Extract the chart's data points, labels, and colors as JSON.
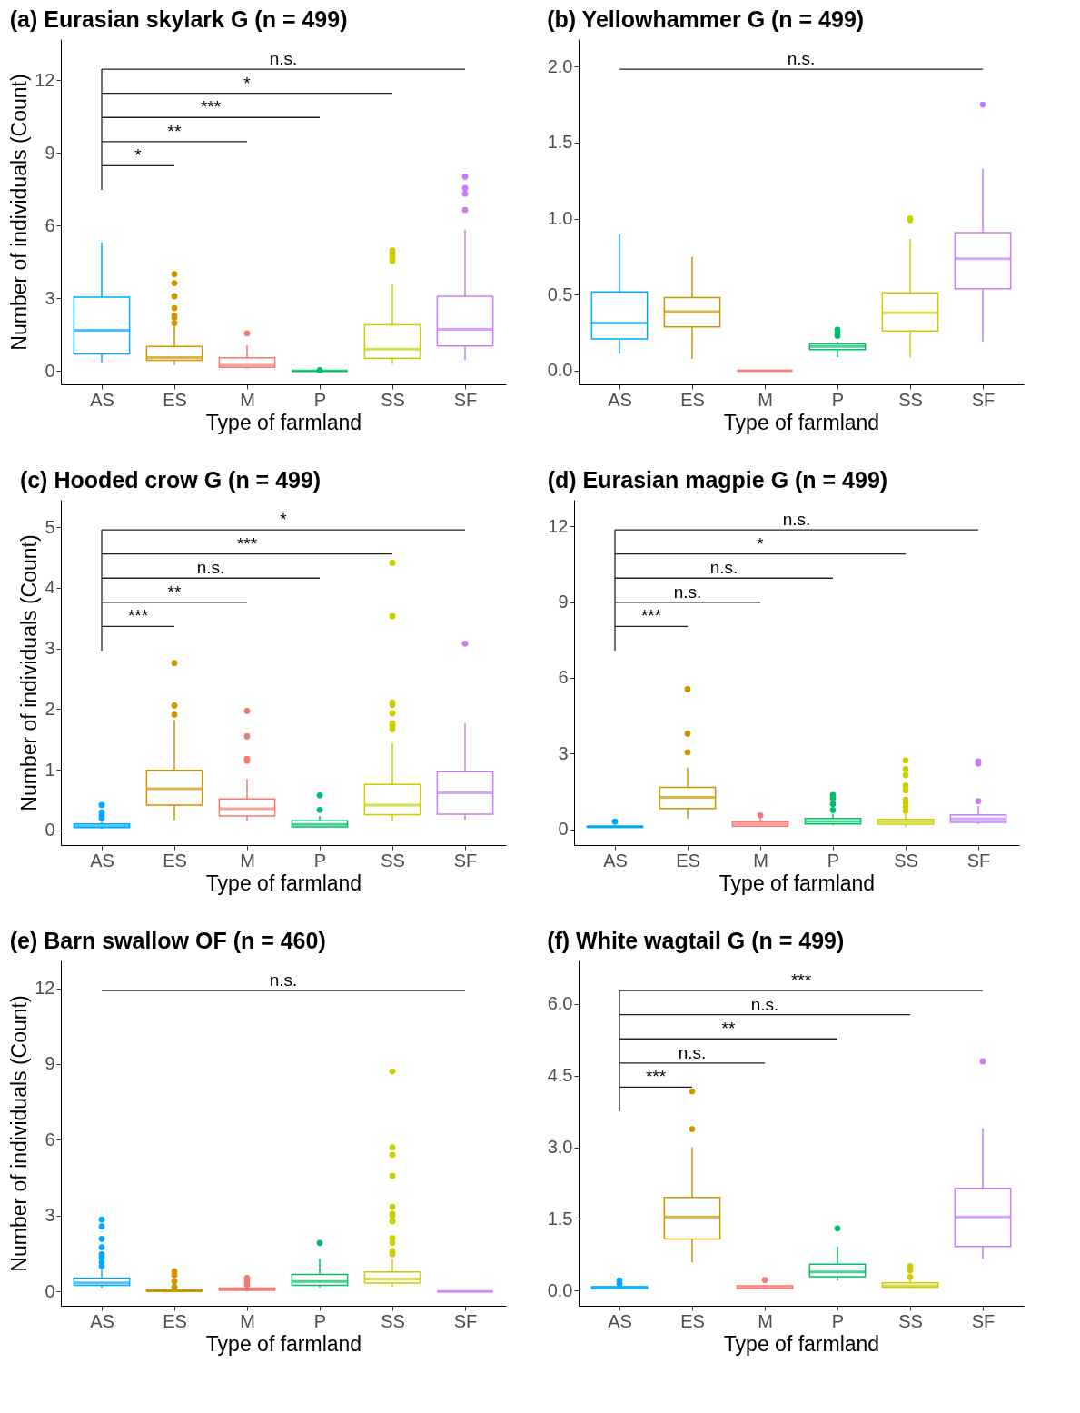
{
  "chart_data": [
    {
      "type": "box",
      "title": "(a) Eurasian skylark G (n = 499)",
      "xlabel": "Type of farmland",
      "ylabel": "Number of individuals (Count)",
      "categories": [
        "AS",
        "ES",
        "M",
        "P",
        "SS",
        "SF"
      ],
      "colors": [
        "#00a9ff",
        "#cd9600",
        "#f8766d",
        "#00be67",
        "#cccc00",
        "#c77cff"
      ],
      "ylim": [
        -0.55,
        13.7
      ],
      "yticks": [
        0,
        3,
        6,
        9,
        12
      ],
      "annotations": [
        "*",
        "**",
        "***",
        "*",
        "n.s."
      ],
      "boxes": [
        {
          "low": 0.34,
          "q1": 0.71,
          "median": 1.68,
          "q3": 3.05,
          "high": 5.3
        },
        {
          "low": 0.25,
          "q1": 0.44,
          "median": 0.56,
          "q3": 1.02,
          "high": 1.9,
          "outliers": [
            1.98,
            2.21,
            2.29,
            2.6,
            3.09,
            3.63,
            4.0
          ]
        },
        {
          "low": 0.1,
          "q1": 0.15,
          "median": 0.24,
          "q3": 0.55,
          "high": 1.07,
          "outliers": [
            1.56
          ]
        },
        {
          "low": 0,
          "q1": 0,
          "median": 0,
          "q3": 0,
          "high": 0,
          "outliers": [
            0.04
          ]
        },
        {
          "low": 0.28,
          "q1": 0.53,
          "median": 0.9,
          "q3": 1.91,
          "high": 3.63,
          "outliers": [
            4.54,
            4.65,
            4.75,
            4.85,
            4.98
          ]
        },
        {
          "low": 0.44,
          "q1": 1.03,
          "median": 1.72,
          "q3": 3.09,
          "high": 5.83,
          "outliers": [
            6.65,
            7.32,
            7.56,
            8.02
          ]
        }
      ]
    },
    {
      "type": "box",
      "title": "(b) Yellowhammer G (n = 499)",
      "xlabel": "Type of farmland",
      "categories": [
        "AS",
        "ES",
        "M",
        "P",
        "SS",
        "SF"
      ],
      "colors": [
        "#00a9ff",
        "#cd9600",
        "#f8766d",
        "#00be67",
        "#cccc00",
        "#c77cff"
      ],
      "ylim": [
        -0.09,
        2.18
      ],
      "yticks": [
        {
          "value": 0,
          "label": "0.0"
        },
        {
          "value": 0.5,
          "label": "0.5"
        },
        {
          "value": 1,
          "label": "1.0"
        },
        {
          "value": 1.5,
          "label": "1.5"
        },
        {
          "value": 2,
          "label": "2.0"
        }
      ],
      "annotations": [
        "n.s."
      ],
      "boxes": [
        {
          "low": 0.11,
          "q1": 0.209,
          "median": 0.313,
          "q3": 0.518,
          "high": 0.895
        },
        {
          "low": 0.077,
          "q1": 0.288,
          "median": 0.388,
          "q3": 0.481,
          "high": 0.748
        },
        {
          "low": 0,
          "q1": 0,
          "median": 0,
          "q3": 0,
          "high": 0
        },
        {
          "low": 0.089,
          "q1": 0.139,
          "median": 0.16,
          "q3": 0.176,
          "high": 0.19,
          "outliers": [
            0.23,
            0.25,
            0.27
          ]
        },
        {
          "low": 0.087,
          "q1": 0.261,
          "median": 0.381,
          "q3": 0.512,
          "high": 0.866,
          "outliers": [
            0.99,
            1.0
          ]
        },
        {
          "low": 0.193,
          "q1": 0.539,
          "median": 0.736,
          "q3": 0.908,
          "high": 1.33,
          "outliers": [
            1.75
          ]
        }
      ]
    },
    {
      "type": "box",
      "title": "(c) Hooded crow G (n = 499)",
      "xlabel": "Type of farmland",
      "ylabel": "Number of individuals (Count)",
      "categories": [
        "AS",
        "ES",
        "M",
        "P",
        "SS",
        "SF"
      ],
      "colors": [
        "#00a9ff",
        "#cd9600",
        "#f8766d",
        "#00be67",
        "#cccc00",
        "#c77cff"
      ],
      "ylim": [
        -0.24,
        5.45
      ],
      "yticks": [
        0,
        1,
        2,
        3,
        4,
        5
      ],
      "annotations": [
        "***",
        "**",
        "n.s.",
        "***",
        "*"
      ],
      "boxes": [
        {
          "low": 0.03,
          "q1": 0.05,
          "median": 0.076,
          "q3": 0.107,
          "high": 0.14,
          "outliers": [
            0.2,
            0.25,
            0.3,
            0.42
          ]
        },
        {
          "low": 0.17,
          "q1": 0.42,
          "median": 0.69,
          "q3": 0.99,
          "high": 1.82,
          "outliers": [
            1.91,
            2.06,
            2.76
          ]
        },
        {
          "low": 0.15,
          "q1": 0.24,
          "median": 0.36,
          "q3": 0.52,
          "high": 0.85,
          "outliers": [
            1.15,
            1.18,
            1.55,
            1.97
          ]
        },
        {
          "low": 0.05,
          "q1": 0.06,
          "median": 0.1,
          "q3": 0.16,
          "high": 0.24,
          "outliers": [
            0.34,
            0.58
          ]
        },
        {
          "low": 0.15,
          "q1": 0.26,
          "median": 0.42,
          "q3": 0.76,
          "high": 1.44,
          "outliers": [
            1.67,
            1.72,
            1.77,
            1.93,
            2.07,
            2.11,
            3.53,
            4.41
          ]
        },
        {
          "low": 0.18,
          "q1": 0.27,
          "median": 0.62,
          "q3": 0.97,
          "high": 1.76,
          "outliers": [
            3.08
          ]
        }
      ]
    },
    {
      "type": "box",
      "title": "(d) Eurasian magpie G (n = 499)",
      "xlabel": "Type of farmland",
      "categories": [
        "AS",
        "ES",
        "M",
        "P",
        "SS",
        "SF"
      ],
      "colors": [
        "#00a9ff",
        "#cd9600",
        "#f8766d",
        "#00be67",
        "#cccc00",
        "#c77cff"
      ],
      "ylim": [
        -0.63,
        13.06
      ],
      "yticks": [
        0,
        3,
        6,
        9,
        12
      ],
      "annotations": [
        "***",
        "n.s.",
        "n.s.",
        "*",
        "n.s."
      ],
      "boxes": [
        {
          "low": 0.05,
          "q1": 0.07,
          "median": 0.1,
          "q3": 0.12,
          "high": 0.15,
          "outliers": [
            0.3
          ]
        },
        {
          "low": 0.42,
          "q1": 0.82,
          "median": 1.26,
          "q3": 1.66,
          "high": 2.44,
          "outliers": [
            3.05,
            3.79,
            5.55
          ]
        },
        {
          "low": 0.1,
          "q1": 0.12,
          "median": 0.21,
          "q3": 0.3,
          "high": 0.42,
          "outliers": [
            0.55
          ]
        },
        {
          "low": 0.15,
          "q1": 0.21,
          "median": 0.31,
          "q3": 0.42,
          "high": 0.6,
          "outliers": [
            0.76,
            1.0,
            1.23,
            1.36
          ]
        },
        {
          "low": 0.1,
          "q1": 0.2,
          "median": 0.3,
          "q3": 0.39,
          "high": 0.6,
          "outliers": [
            0.73,
            0.88,
            1.05,
            1.17,
            1.54,
            1.73,
            2.14,
            2.38,
            2.73
          ]
        },
        {
          "low": 0.2,
          "q1": 0.27,
          "median": 0.41,
          "q3": 0.57,
          "high": 0.92,
          "outliers": [
            1.11,
            2.6,
            2.69
          ]
        }
      ]
    },
    {
      "type": "box",
      "title": "(e) Barn swallow OF (n = 460)",
      "xlabel": "Type of farmland",
      "ylabel": "Number of individuals (Count)",
      "categories": [
        "AS",
        "ES",
        "M",
        "P",
        "SS",
        "SF"
      ],
      "colors": [
        "#00a9ff",
        "#cd9600",
        "#f8766d",
        "#00be67",
        "#cccc00",
        "#c77cff"
      ],
      "ylim": [
        -0.57,
        13.1
      ],
      "yticks": [
        0,
        3,
        6,
        9,
        12
      ],
      "annotations": [
        "n.s."
      ],
      "boxes": [
        {
          "low": 0.15,
          "q1": 0.24,
          "median": 0.34,
          "q3": 0.53,
          "high": 0.86,
          "outliers": [
            1.0,
            1.16,
            1.35,
            1.47,
            1.75,
            2.08,
            2.57,
            2.84
          ]
        },
        {
          "low": 0,
          "q1": 0,
          "median": 0.02,
          "q3": 0.05,
          "high": 0.1,
          "outliers": [
            0.18,
            0.4,
            0.64,
            0.8
          ]
        },
        {
          "low": 0,
          "q1": 0.05,
          "median": 0.08,
          "q3": 0.13,
          "high": 0.2,
          "outliers": [
            0.27,
            0.37,
            0.53
          ]
        },
        {
          "low": 0.16,
          "q1": 0.24,
          "median": 0.39,
          "q3": 0.67,
          "high": 1.29,
          "outliers": [
            1.92
          ]
        },
        {
          "low": 0.18,
          "q1": 0.33,
          "median": 0.49,
          "q3": 0.77,
          "high": 1.29,
          "outliers": [
            1.47,
            1.59,
            1.93,
            2.11,
            2.78,
            3.0,
            3.08,
            3.35,
            4.57,
            5.41,
            5.7,
            8.71
          ]
        },
        {
          "low": 0,
          "q1": 0,
          "median": 0,
          "q3": 0,
          "high": 0
        }
      ]
    },
    {
      "type": "box",
      "title": "(f) White wagtail G (n = 499)",
      "xlabel": "Type of farmland",
      "categories": [
        "AS",
        "ES",
        "M",
        "P",
        "SS",
        "SF"
      ],
      "colors": [
        "#00a9ff",
        "#cd9600",
        "#f8766d",
        "#00be67",
        "#cccc00",
        "#c77cff"
      ],
      "ylim": [
        -0.32,
        6.91
      ],
      "yticks": [
        {
          "value": 0,
          "label": "0.0"
        },
        {
          "value": 1.5,
          "label": "1.5"
        },
        {
          "value": 3,
          "label": "3.0"
        },
        {
          "value": 4.5,
          "label": "4.5"
        },
        {
          "value": 6,
          "label": "6.0"
        }
      ],
      "annotations": [
        "***",
        "n.s.",
        "**",
        "n.s.",
        "***"
      ],
      "boxes": [
        {
          "low": 0.03,
          "q1": 0.04,
          "median": 0.06,
          "q3": 0.08,
          "high": 0.1,
          "outliers": [
            0.14,
            0.21
          ]
        },
        {
          "low": 0.59,
          "q1": 1.08,
          "median": 1.54,
          "q3": 1.95,
          "high": 3.0,
          "outliers": [
            3.38,
            4.17
          ]
        },
        {
          "low": 0.04,
          "q1": 0.04,
          "median": 0.06,
          "q3": 0.1,
          "high": 0.1,
          "outliers": [
            0.22
          ]
        },
        {
          "low": 0.21,
          "q1": 0.29,
          "median": 0.39,
          "q3": 0.55,
          "high": 0.92,
          "outliers": [
            1.3
          ]
        },
        {
          "low": 0.05,
          "q1": 0.07,
          "median": 0.1,
          "q3": 0.16,
          "high": 0.22,
          "outliers": [
            0.28,
            0.42,
            0.51
          ]
        },
        {
          "low": 0.66,
          "q1": 0.92,
          "median": 1.54,
          "q3": 2.14,
          "high": 3.4,
          "outliers": [
            4.8
          ]
        }
      ]
    }
  ]
}
